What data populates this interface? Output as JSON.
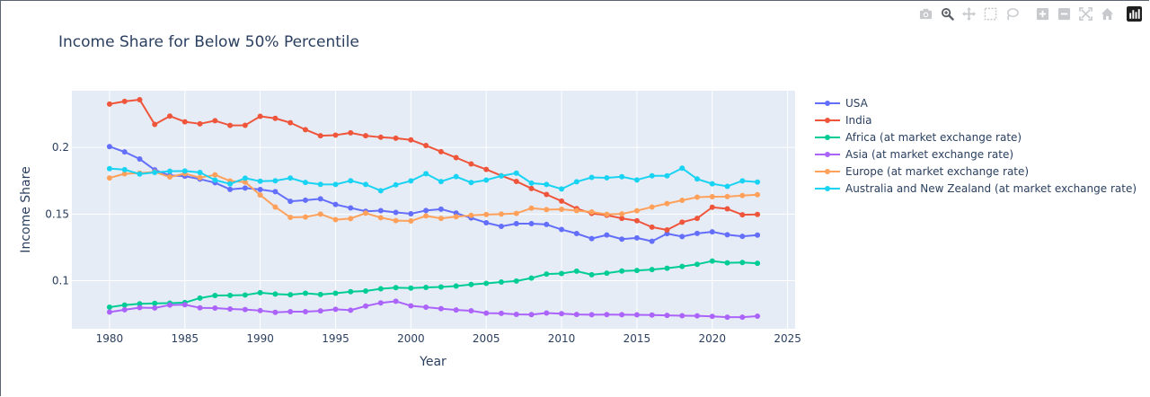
{
  "modebar": {
    "buttons": [
      "camera-icon",
      "zoom-icon",
      "pan-icon",
      "box-select-icon",
      "lasso-icon",
      "zoom-in-icon",
      "zoom-out-icon",
      "autoscale-icon",
      "reset-axes-icon",
      "plotly-logo-icon"
    ]
  },
  "chart_data": {
    "type": "line",
    "title": "Income Share for Below 50% Percentile",
    "xlabel": "Year",
    "ylabel": "Income Share",
    "xlim": [
      1977.5,
      2025.5
    ],
    "ylim": [
      0.064,
      0.2425
    ],
    "xticks": [
      1980,
      1985,
      1990,
      1995,
      2000,
      2005,
      2010,
      2015,
      2020,
      2025
    ],
    "xtick_labels": [
      "1980",
      "1985",
      "1990",
      "1995",
      "2000",
      "2005",
      "2010",
      "2015",
      "2020",
      "2025"
    ],
    "yticks": [
      0.1,
      0.15,
      0.2
    ],
    "ytick_labels": [
      "0.1",
      "0.15",
      "0.2"
    ],
    "grid": true,
    "legend_position": "right",
    "x": [
      1980,
      1981,
      1982,
      1983,
      1984,
      1985,
      1986,
      1987,
      1988,
      1989,
      1990,
      1991,
      1992,
      1993,
      1994,
      1995,
      1996,
      1997,
      1998,
      1999,
      2000,
      2001,
      2002,
      2003,
      2004,
      2005,
      2006,
      2007,
      2008,
      2009,
      2010,
      2011,
      2012,
      2013,
      2014,
      2015,
      2016,
      2017,
      2018,
      2019,
      2020,
      2021,
      2022,
      2023
    ],
    "series": [
      {
        "name": "USA",
        "color": "#636efa",
        "values": [
          0.2006,
          0.1966,
          0.1913,
          0.1831,
          0.1789,
          0.1784,
          0.1762,
          0.1735,
          0.1685,
          0.1695,
          0.1684,
          0.1668,
          0.1596,
          0.1604,
          0.1614,
          0.1572,
          0.1546,
          0.1521,
          0.1526,
          0.1512,
          0.1502,
          0.1527,
          0.1537,
          0.1507,
          0.1471,
          0.1435,
          0.1408,
          0.1428,
          0.1428,
          0.1422,
          0.1384,
          0.1354,
          0.1316,
          0.1343,
          0.1312,
          0.1321,
          0.1296,
          0.1353,
          0.1331,
          0.1355,
          0.1367,
          0.1345,
          0.1333,
          0.1342
        ]
      },
      {
        "name": "India",
        "color": "#ef553b",
        "values": [
          0.2325,
          0.2345,
          0.2358,
          0.2172,
          0.2235,
          0.2192,
          0.2177,
          0.22,
          0.2165,
          0.2166,
          0.2233,
          0.2218,
          0.2185,
          0.2133,
          0.2087,
          0.2092,
          0.2109,
          0.2087,
          0.2076,
          0.2069,
          0.2056,
          0.2014,
          0.1968,
          0.1923,
          0.1876,
          0.1835,
          0.1788,
          0.1745,
          0.1692,
          0.1647,
          0.1597,
          0.1541,
          0.1505,
          0.1491,
          0.1468,
          0.145,
          0.1402,
          0.1381,
          0.1439,
          0.1468,
          0.1551,
          0.1539,
          0.1495,
          0.1497
        ]
      },
      {
        "name": "Africa (at market exchange rate)",
        "color": "#00cc96",
        "values": [
          0.0802,
          0.0818,
          0.0827,
          0.083,
          0.0832,
          0.0836,
          0.087,
          0.0889,
          0.089,
          0.0893,
          0.091,
          0.09,
          0.0895,
          0.0906,
          0.0897,
          0.0906,
          0.0918,
          0.0923,
          0.094,
          0.0948,
          0.0945,
          0.095,
          0.0953,
          0.096,
          0.0972,
          0.098,
          0.099,
          0.0998,
          0.102,
          0.105,
          0.1054,
          0.1072,
          0.1045,
          0.1057,
          0.1073,
          0.1077,
          0.1084,
          0.1094,
          0.1107,
          0.1123,
          0.1148,
          0.1134,
          0.1137,
          0.1131
        ]
      },
      {
        "name": "Asia (at market exchange rate)",
        "color": "#ab63fa",
        "values": [
          0.0765,
          0.0782,
          0.0798,
          0.0796,
          0.0818,
          0.082,
          0.0797,
          0.0795,
          0.0788,
          0.0784,
          0.0776,
          0.0763,
          0.0768,
          0.0768,
          0.0774,
          0.0786,
          0.0779,
          0.081,
          0.0834,
          0.0846,
          0.0812,
          0.0802,
          0.0791,
          0.0781,
          0.0775,
          0.0757,
          0.0755,
          0.0748,
          0.0746,
          0.0758,
          0.0753,
          0.0747,
          0.0745,
          0.0746,
          0.0745,
          0.0744,
          0.0743,
          0.074,
          0.0738,
          0.0737,
          0.0733,
          0.0727,
          0.0727,
          0.0734
        ]
      },
      {
        "name": "Europe (at market exchange rate)",
        "color": "#ffa15a",
        "values": [
          0.1771,
          0.1802,
          0.1807,
          0.1816,
          0.1778,
          0.1803,
          0.1773,
          0.1794,
          0.1748,
          0.174,
          0.1643,
          0.1553,
          0.1475,
          0.1478,
          0.15,
          0.1458,
          0.1466,
          0.1507,
          0.1473,
          0.1451,
          0.1448,
          0.1486,
          0.1468,
          0.148,
          0.149,
          0.1496,
          0.15,
          0.1505,
          0.1544,
          0.1533,
          0.1536,
          0.1526,
          0.1516,
          0.1498,
          0.1501,
          0.1525,
          0.1553,
          0.1579,
          0.1603,
          0.1627,
          0.163,
          0.1631,
          0.1639,
          0.1645
        ]
      },
      {
        "name": "Australia and New Zealand (at market exchange rate)",
        "color": "#19d3f3",
        "values": [
          0.1841,
          0.1833,
          0.18,
          0.1812,
          0.1821,
          0.1823,
          0.1812,
          0.1755,
          0.1726,
          0.1769,
          0.1746,
          0.175,
          0.177,
          0.1737,
          0.1723,
          0.1722,
          0.175,
          0.1722,
          0.1675,
          0.1719,
          0.1749,
          0.1803,
          0.1744,
          0.1781,
          0.1736,
          0.1755,
          0.1786,
          0.1807,
          0.1732,
          0.1722,
          0.1688,
          0.1742,
          0.1775,
          0.1772,
          0.178,
          0.1756,
          0.1787,
          0.1787,
          0.1844,
          0.1763,
          0.1727,
          0.1708,
          0.1749,
          0.174
        ]
      }
    ]
  }
}
